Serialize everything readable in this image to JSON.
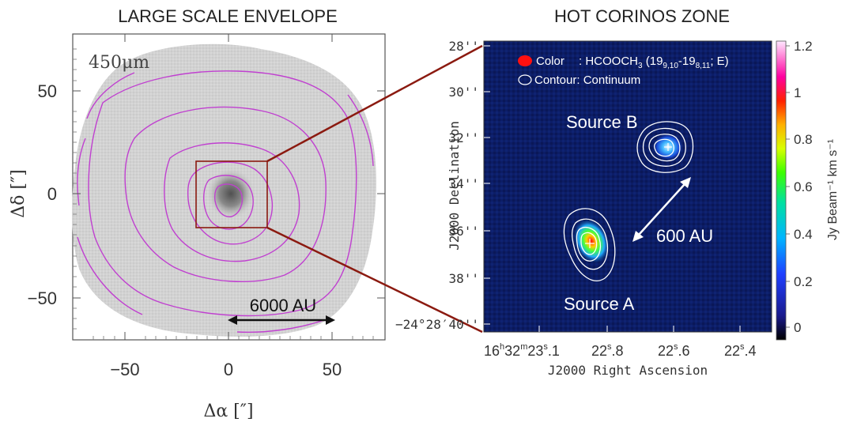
{
  "left_panel": {
    "title": "LARGE SCALE ENVELOPE",
    "wavelength_label": "450μm",
    "x_axis_label": "Δα [″]",
    "y_axis_label": "Δδ [″]",
    "x_ticks": [
      "−50",
      "0",
      "50"
    ],
    "y_ticks": [
      "50",
      "0",
      "−50"
    ],
    "scale_bar_label": "6000 AU",
    "contour_color": "#c040d0",
    "zoom_box_color": "#8b1a10"
  },
  "right_panel": {
    "title": "HOT CORINOS ZONE",
    "legend_color_label": "Color",
    "legend_color_value_prefix": ": HCOOCH",
    "legend_color_sub3": "3",
    "legend_color_paren_open": " (19",
    "legend_color_sub_a": "9,10",
    "legend_color_dash": "-19",
    "legend_color_sub_b": "8,11",
    "legend_color_suffix": "; E)",
    "legend_contour_label": "Contour: Continuum",
    "source_a_label": "Source A",
    "source_b_label": "Source B",
    "separation_label": "600 AU",
    "y_axis_label": "J2000 Declination",
    "x_axis_label": "J2000 Right Ascension",
    "y_ticks": [
      "28''",
      "30''",
      "32''",
      "34''",
      "36''",
      "38''",
      "−24°28′40''"
    ],
    "x_ticks": [
      "16h32m23s.1",
      "22s.8",
      "22s.6",
      "22s.4"
    ],
    "x_tick_first_pre": "16",
    "x_tick_first_h": "h",
    "x_tick_first_mid": "32",
    "x_tick_first_m": "m",
    "x_tick_first_sec": "23",
    "x_tick_first_s": "s",
    "x_tick_first_frac": ".1",
    "x_tick_2_pre": "22",
    "x_tick_2_frac": ".8",
    "x_tick_3_frac": ".6",
    "x_tick_4_frac": ".4",
    "colorbar_ticks": [
      "1.2",
      "1",
      "0.8",
      "0.6",
      "0.4",
      "0.2",
      "0"
    ],
    "colorbar_label": "Jy Beam⁻¹ km s⁻¹",
    "background_color": "#0a1a5c"
  }
}
